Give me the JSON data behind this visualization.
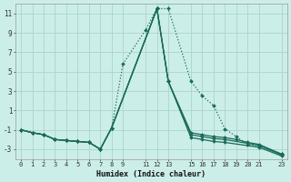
{
  "xlabel": "Humidex (Indice chaleur)",
  "background_color": "#cceee8",
  "grid_color": "#aad4cc",
  "line_color": "#1a6b5a",
  "xlim": [
    -0.5,
    23.5
  ],
  "ylim": [
    -4,
    12
  ],
  "yticks": [
    -3,
    -1,
    1,
    3,
    5,
    7,
    9,
    11
  ],
  "xticks": [
    0,
    1,
    2,
    3,
    4,
    5,
    6,
    7,
    8,
    9,
    11,
    12,
    13,
    15,
    16,
    17,
    18,
    19,
    20,
    21,
    23
  ],
  "series": [
    {
      "x": [
        0,
        1,
        2,
        3,
        4,
        5,
        6,
        7,
        8,
        9,
        11,
        12,
        13,
        15,
        16,
        17,
        18,
        19,
        20,
        21,
        23
      ],
      "y": [
        -1,
        -1.3,
        -1.5,
        -2.0,
        -2.1,
        -2.2,
        -2.3,
        -3.0,
        -0.8,
        5.8,
        9.3,
        11.5,
        11.5,
        4.0,
        2.5,
        1.5,
        -0.9,
        -1.7,
        -2.5,
        -2.7,
        -3.5
      ],
      "linestyle": "dotted",
      "linewidth": 0.9,
      "markersize": 2.0
    },
    {
      "x": [
        0,
        1,
        2,
        3,
        4,
        5,
        6,
        7,
        8,
        12,
        13,
        15,
        16,
        17,
        18,
        19,
        20,
        21,
        23
      ],
      "y": [
        -1,
        -1.3,
        -1.5,
        -2.0,
        -2.1,
        -2.2,
        -2.3,
        -3.0,
        -0.8,
        11.5,
        4.0,
        -1.3,
        -1.5,
        -1.7,
        -1.8,
        -2.0,
        -2.3,
        -2.5,
        -3.5
      ],
      "linestyle": "solid",
      "linewidth": 0.9,
      "markersize": 2.0
    },
    {
      "x": [
        0,
        1,
        2,
        3,
        4,
        5,
        6,
        7,
        8,
        12,
        13,
        15,
        16,
        17,
        18,
        21,
        23
      ],
      "y": [
        -1,
        -1.3,
        -1.5,
        -2.0,
        -2.1,
        -2.2,
        -2.3,
        -3.0,
        -0.8,
        11.5,
        4.0,
        -1.5,
        -1.7,
        -1.9,
        -2.0,
        -2.6,
        -3.6
      ],
      "linestyle": "solid",
      "linewidth": 0.9,
      "markersize": 2.0
    },
    {
      "x": [
        0,
        1,
        2,
        3,
        4,
        5,
        6,
        7,
        8,
        12,
        13,
        15,
        16,
        17,
        18,
        21,
        23
      ],
      "y": [
        -1,
        -1.3,
        -1.5,
        -2.0,
        -2.1,
        -2.2,
        -2.3,
        -3.0,
        -0.8,
        11.5,
        4.0,
        -1.8,
        -2.0,
        -2.2,
        -2.3,
        -2.8,
        -3.7
      ],
      "linestyle": "solid",
      "linewidth": 0.9,
      "markersize": 2.0
    }
  ]
}
